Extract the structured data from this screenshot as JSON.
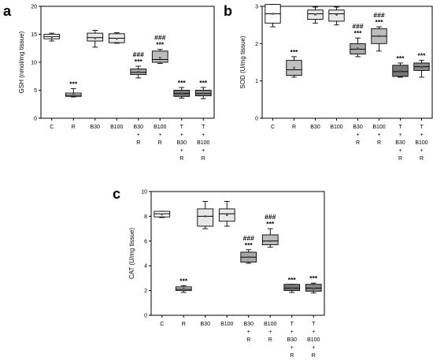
{
  "figure": {
    "panels": [
      "a",
      "b",
      "c"
    ]
  },
  "chart_data": [
    {
      "panel": "a",
      "type": "box",
      "ylabel": "GSH (nmol/mg tissue)",
      "ylim": [
        0,
        20
      ],
      "yticks": [
        0,
        5,
        10,
        15,
        20
      ],
      "categories": [
        "C",
        "R",
        "B30",
        "B100",
        "B30\n+\nR",
        "B100\n+\nR",
        "T\n+\nB30\n+\nR",
        "T\n+\nB100\n+\nR"
      ],
      "fill_colors": [
        "#ffffff",
        "#d0d0d0",
        "#e8e8e8",
        "#e8e8e8",
        "#a8a8a8",
        "#bcbcbc",
        "#787878",
        "#8a8a8a"
      ],
      "boxes": [
        {
          "min": 13.8,
          "q1": 14.2,
          "median": 14.6,
          "mean": 14.5,
          "q3": 15.0,
          "max": 15.2,
          "sig": [
            "",
            ""
          ]
        },
        {
          "min": 3.8,
          "q1": 3.9,
          "median": 4.1,
          "mean": 4.2,
          "q3": 4.5,
          "max": 5.3,
          "sig": [
            "***",
            ""
          ]
        },
        {
          "min": 12.7,
          "q1": 13.8,
          "median": 14.4,
          "mean": 14.3,
          "q3": 15.2,
          "max": 15.7,
          "sig": [
            "",
            ""
          ]
        },
        {
          "min": 13.4,
          "q1": 13.5,
          "median": 14.3,
          "mean": 14.2,
          "q3": 15.1,
          "max": 15.3,
          "sig": [
            "",
            ""
          ]
        },
        {
          "min": 7.2,
          "q1": 7.8,
          "median": 8.2,
          "mean": 8.3,
          "q3": 8.8,
          "max": 9.3,
          "sig": [
            "***",
            "###"
          ]
        },
        {
          "min": 9.8,
          "q1": 10.0,
          "median": 10.5,
          "mean": 10.8,
          "q3": 12.0,
          "max": 12.3,
          "sig": [
            "***",
            "###"
          ]
        },
        {
          "min": 3.6,
          "q1": 3.9,
          "median": 4.4,
          "mean": 4.4,
          "q3": 5.0,
          "max": 5.5,
          "sig": [
            "***",
            ""
          ]
        },
        {
          "min": 3.5,
          "q1": 4.0,
          "median": 4.4,
          "mean": 4.5,
          "q3": 5.0,
          "max": 5.5,
          "sig": [
            "***",
            ""
          ]
        }
      ]
    },
    {
      "panel": "b",
      "type": "box",
      "ylabel": "SOD (U/mg tissue)",
      "ylim": [
        0,
        3
      ],
      "yticks": [
        0,
        1,
        2,
        3
      ],
      "categories": [
        "C",
        "R",
        "B30",
        "B100",
        "B30\n+\nR",
        "B100\n+\nR",
        "T\n+\nB30\n+\nR",
        "T\n+\nB100\n+\nR"
      ],
      "fill_colors": [
        "#ffffff",
        "#c0c0c0",
        "#e8e8e8",
        "#e8e8e8",
        "#a8a8a8",
        "#bcbcbc",
        "#787878",
        "#8a8a8a"
      ],
      "boxes": [
        {
          "min": 2.45,
          "q1": 2.55,
          "median": 2.8,
          "mean": 2.8,
          "q3": 3.05,
          "max": 3.05,
          "sig": [
            "",
            ""
          ]
        },
        {
          "min": 1.1,
          "q1": 1.15,
          "median": 1.3,
          "mean": 1.35,
          "q3": 1.55,
          "max": 1.65,
          "sig": [
            "***",
            ""
          ]
        },
        {
          "min": 2.55,
          "q1": 2.65,
          "median": 2.8,
          "mean": 2.78,
          "q3": 2.9,
          "max": 2.98,
          "sig": [
            "",
            ""
          ]
        },
        {
          "min": 2.5,
          "q1": 2.6,
          "median": 2.8,
          "mean": 2.77,
          "q3": 2.9,
          "max": 2.98,
          "sig": [
            "",
            ""
          ]
        },
        {
          "min": 1.65,
          "q1": 1.72,
          "median": 1.85,
          "mean": 1.87,
          "q3": 2.0,
          "max": 2.15,
          "sig": [
            "***",
            "###"
          ]
        },
        {
          "min": 1.8,
          "q1": 2.0,
          "median": 2.2,
          "mean": 2.2,
          "q3": 2.4,
          "max": 2.45,
          "sig": [
            "***",
            "###"
          ]
        },
        {
          "min": 1.1,
          "q1": 1.12,
          "median": 1.25,
          "mean": 1.27,
          "q3": 1.42,
          "max": 1.48,
          "sig": [
            "***",
            ""
          ]
        },
        {
          "min": 1.1,
          "q1": 1.28,
          "median": 1.38,
          "mean": 1.37,
          "q3": 1.48,
          "max": 1.55,
          "sig": [
            "***",
            ""
          ]
        }
      ]
    },
    {
      "panel": "c",
      "type": "box",
      "ylabel": "CAT (U/mg tissue)",
      "ylim": [
        0,
        10
      ],
      "yticks": [
        0,
        2,
        4,
        6,
        8,
        10
      ],
      "categories": [
        "C",
        "R",
        "B30",
        "B100",
        "B30\n+\nR",
        "B100\n+\nR",
        "T\n+\nB30\n+\nR",
        "T\n+\nB100\n+\nR"
      ],
      "fill_colors": [
        "#ffffff",
        "#c0c0c0",
        "#e8e8e8",
        "#e8e8e8",
        "#a8a8a8",
        "#bcbcbc",
        "#787878",
        "#8a8a8a"
      ],
      "boxes": [
        {
          "min": 7.9,
          "q1": 7.95,
          "median": 8.2,
          "mean": 8.15,
          "q3": 8.4,
          "max": 8.4,
          "sig": [
            "",
            ""
          ]
        },
        {
          "min": 1.85,
          "q1": 2.0,
          "median": 2.1,
          "mean": 2.15,
          "q3": 2.3,
          "max": 2.4,
          "sig": [
            "***",
            ""
          ]
        },
        {
          "min": 7.0,
          "q1": 7.2,
          "median": 8.0,
          "mean": 8.0,
          "q3": 8.6,
          "max": 9.2,
          "sig": [
            "",
            ""
          ]
        },
        {
          "min": 7.2,
          "q1": 7.6,
          "median": 8.2,
          "mean": 8.1,
          "q3": 8.6,
          "max": 9.2,
          "sig": [
            "",
            ""
          ]
        },
        {
          "min": 4.2,
          "q1": 4.3,
          "median": 4.7,
          "mean": 4.7,
          "q3": 5.1,
          "max": 5.3,
          "sig": [
            "***",
            "###"
          ]
        },
        {
          "min": 5.5,
          "q1": 5.7,
          "median": 6.0,
          "mean": 6.0,
          "q3": 6.5,
          "max": 7.0,
          "sig": [
            "***",
            "###"
          ]
        },
        {
          "min": 1.85,
          "q1": 2.0,
          "median": 2.2,
          "mean": 2.2,
          "q3": 2.5,
          "max": 2.5,
          "sig": [
            "***",
            ""
          ]
        },
        {
          "min": 1.8,
          "q1": 1.95,
          "median": 2.2,
          "mean": 2.15,
          "q3": 2.5,
          "max": 2.6,
          "sig": [
            "***",
            ""
          ]
        }
      ]
    }
  ]
}
